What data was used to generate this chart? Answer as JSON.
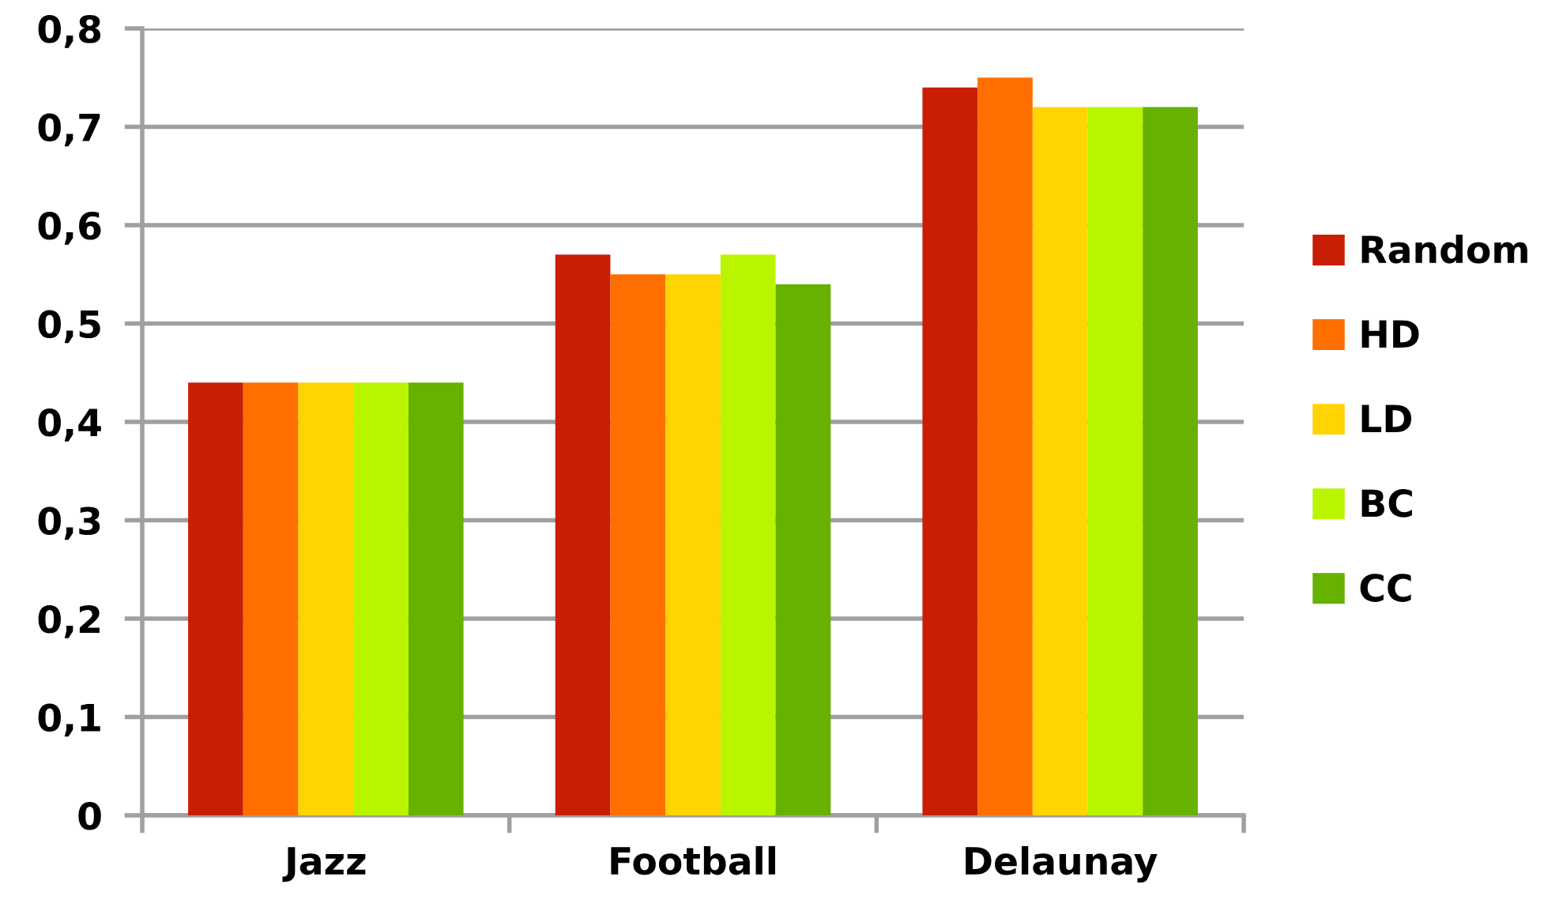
{
  "chart_data": {
    "type": "bar",
    "categories": [
      "Jazz",
      "Football",
      "Delaunay"
    ],
    "series": [
      {
        "name": "Random",
        "color": "#c81e04",
        "values": [
          0.44,
          0.57,
          0.74
        ]
      },
      {
        "name": "HD",
        "color": "#ff6f00",
        "values": [
          0.44,
          0.55,
          0.75
        ]
      },
      {
        "name": "LD",
        "color": "#ffd400",
        "values": [
          0.44,
          0.55,
          0.72
        ]
      },
      {
        "name": "BC",
        "color": "#baf500",
        "values": [
          0.44,
          0.57,
          0.72
        ]
      },
      {
        "name": "CC",
        "color": "#67b100",
        "values": [
          0.44,
          0.54,
          0.72
        ]
      }
    ],
    "ylim": [
      0,
      0.8
    ],
    "yticks": [
      {
        "value": 0,
        "label": "0"
      },
      {
        "value": 0.1,
        "label": "0,1"
      },
      {
        "value": 0.2,
        "label": "0,2"
      },
      {
        "value": 0.3,
        "label": "0,3"
      },
      {
        "value": 0.4,
        "label": "0,4"
      },
      {
        "value": 0.5,
        "label": "0,5"
      },
      {
        "value": 0.6,
        "label": "0,6"
      },
      {
        "value": 0.7,
        "label": "0,7"
      },
      {
        "value": 0.8,
        "label": "0,8"
      }
    ],
    "grid": "y",
    "legend": "right"
  }
}
